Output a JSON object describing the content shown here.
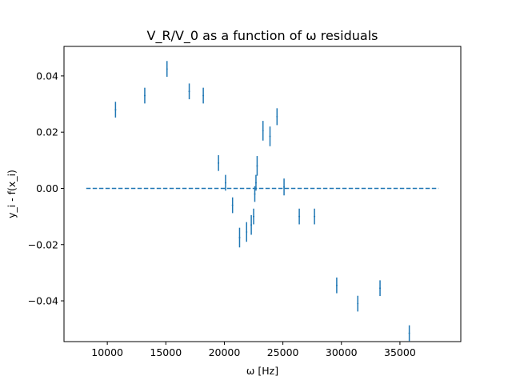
{
  "chart_data": {
    "type": "scatter",
    "title": "V_R/V_0 as a function of ω residuals",
    "xlabel": "ω [Hz]",
    "ylabel": "y_i - f(x_i)",
    "xlim": [
      6300,
      40200
    ],
    "ylim": [
      -0.0545,
      0.0505
    ],
    "xticks": [
      10000,
      15000,
      20000,
      25000,
      30000,
      35000
    ],
    "xtick_labels": [
      "10000",
      "15000",
      "20000",
      "25000",
      "30000",
      "35000"
    ],
    "yticks": [
      0.04,
      0.02,
      0.0,
      -0.02,
      -0.04
    ],
    "ytick_labels": [
      "0.04",
      "0.02",
      "0.00",
      "−0.02",
      "−0.04"
    ],
    "grid": false,
    "series": [
      {
        "style": "errorbar",
        "color": "#1f77b4",
        "points": [
          {
            "x": 10700,
            "y": 0.028,
            "yerr": 0.0028
          },
          {
            "x": 13200,
            "y": 0.033,
            "yerr": 0.0028
          },
          {
            "x": 15100,
            "y": 0.0425,
            "yerr": 0.0028
          },
          {
            "x": 17000,
            "y": 0.0345,
            "yerr": 0.0028
          },
          {
            "x": 18200,
            "y": 0.033,
            "yerr": 0.0028
          },
          {
            "x": 19500,
            "y": 0.009,
            "yerr": 0.0028
          },
          {
            "x": 20100,
            "y": 0.002,
            "yerr": 0.0028
          },
          {
            "x": 20700,
            "y": -0.006,
            "yerr": 0.0028
          },
          {
            "x": 21300,
            "y": -0.0175,
            "yerr": 0.0035
          },
          {
            "x": 21900,
            "y": -0.0155,
            "yerr": 0.0035
          },
          {
            "x": 22300,
            "y": -0.013,
            "yerr": 0.0035
          },
          {
            "x": 22500,
            "y": -0.01,
            "yerr": 0.0028
          },
          {
            "x": 22600,
            "y": -0.002,
            "yerr": 0.0028
          },
          {
            "x": 22700,
            "y": 0.002,
            "yerr": 0.0028
          },
          {
            "x": 22800,
            "y": 0.008,
            "yerr": 0.0035
          },
          {
            "x": 23300,
            "y": 0.0205,
            "yerr": 0.0035
          },
          {
            "x": 23900,
            "y": 0.0185,
            "yerr": 0.0035
          },
          {
            "x": 24500,
            "y": 0.0255,
            "yerr": 0.003
          },
          {
            "x": 25100,
            "y": 0.0005,
            "yerr": 0.003
          },
          {
            "x": 26400,
            "y": -0.01,
            "yerr": 0.0028
          },
          {
            "x": 27700,
            "y": -0.01,
            "yerr": 0.0028
          },
          {
            "x": 29600,
            "y": -0.0345,
            "yerr": 0.0028
          },
          {
            "x": 31400,
            "y": -0.041,
            "yerr": 0.0028
          },
          {
            "x": 33300,
            "y": -0.0355,
            "yerr": 0.0028
          },
          {
            "x": 35800,
            "y": -0.0515,
            "yerr": 0.0028
          }
        ]
      },
      {
        "style": "dashed-line",
        "color": "#1f77b4",
        "x": [
          8200,
          38300
        ],
        "y": [
          0.0,
          0.0
        ]
      }
    ]
  }
}
